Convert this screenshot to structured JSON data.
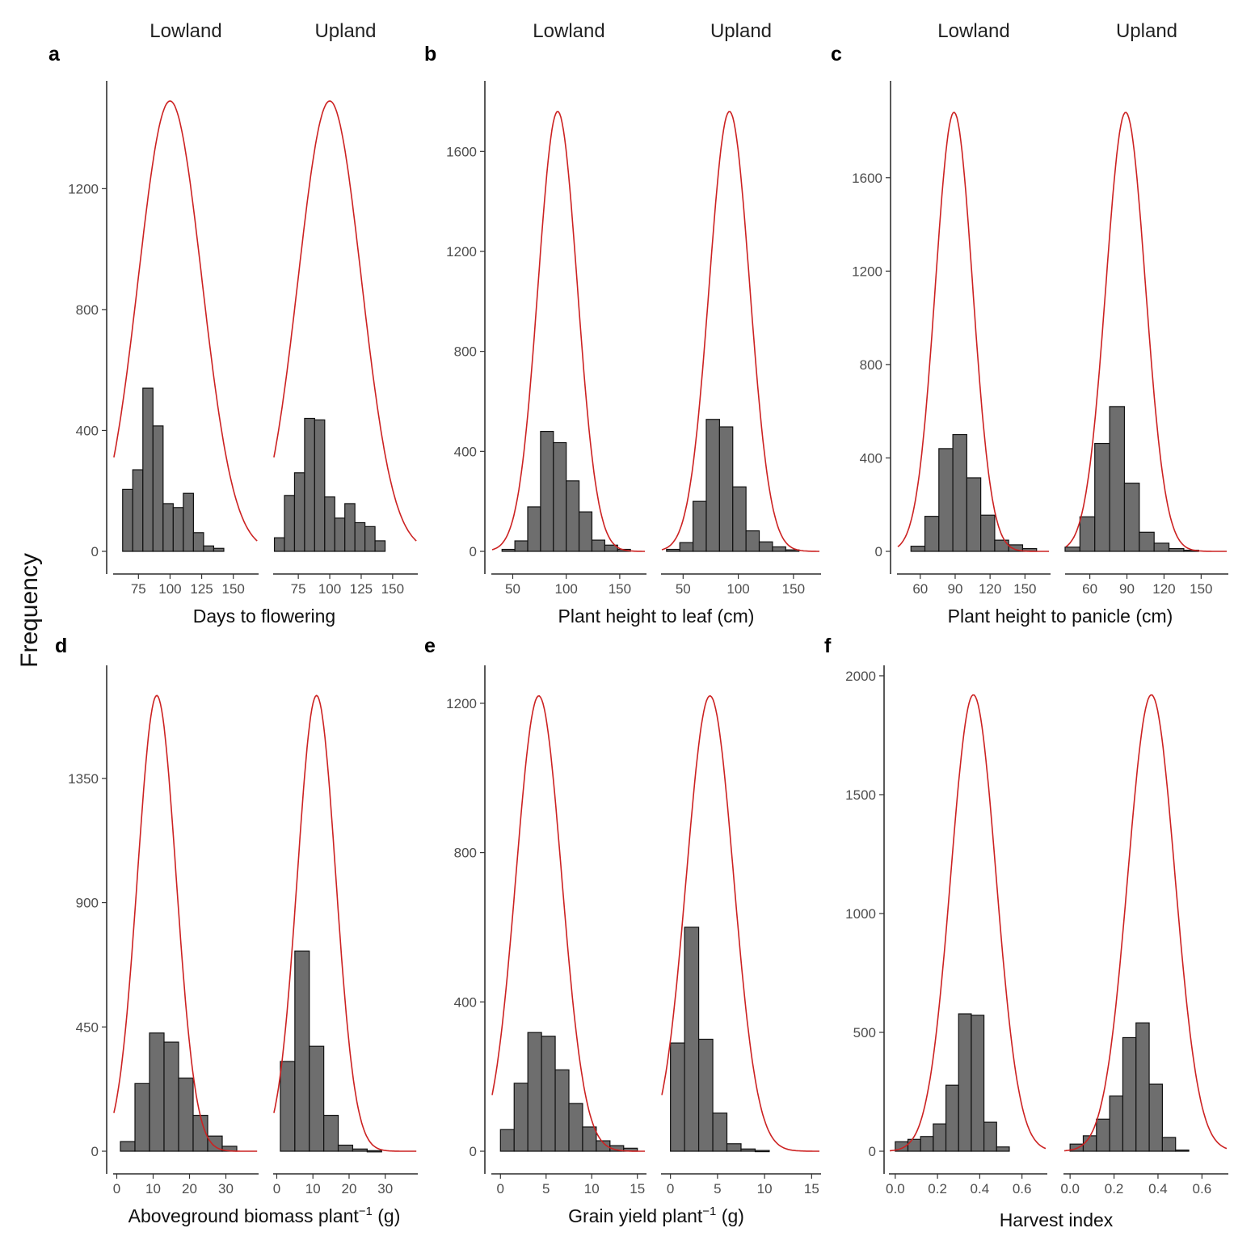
{
  "y_axis_title": "Frequency",
  "chart_data": [
    {
      "panel": "a",
      "type": "bar",
      "xlabel": "Days to flowering",
      "ylabel": "Frequency",
      "facets": [
        "Lowland",
        "Upland"
      ],
      "x_ticks": [
        75,
        100,
        125,
        150
      ],
      "y_ticks": [
        0,
        400,
        800,
        1200
      ],
      "xlim": [
        55,
        170
      ],
      "ylim": [
        0,
        1530
      ],
      "series": [
        {
          "facet": "Lowland",
          "bins": [
            [
              62.5,
              70.5,
              205
            ],
            [
              70.5,
              78.5,
              270
            ],
            [
              78.5,
              86.5,
              540
            ],
            [
              86.5,
              94.5,
              415
            ],
            [
              94.5,
              102.5,
              158
            ],
            [
              102.5,
              110.5,
              145
            ],
            [
              110.5,
              118.5,
              192
            ],
            [
              118.5,
              126.5,
              62
            ],
            [
              126.5,
              134.5,
              18
            ],
            [
              134.5,
              142.5,
              10
            ]
          ],
          "curve": {
            "mean": 100,
            "sd": 25.1,
            "peak": 1490
          }
        },
        {
          "facet": "Upland",
          "bins": [
            [
              56,
              64,
              45
            ],
            [
              64,
              72,
              185
            ],
            [
              72,
              80,
              260
            ],
            [
              80,
              88,
              440
            ],
            [
              88,
              96,
              435
            ],
            [
              96,
              104,
              180
            ],
            [
              104,
              112,
              110
            ],
            [
              112,
              120,
              158
            ],
            [
              120,
              128,
              95
            ],
            [
              128,
              136,
              82
            ],
            [
              136,
              144,
              35
            ]
          ],
          "curve": {
            "mean": 100,
            "sd": 25.1,
            "peak": 1490
          }
        }
      ]
    },
    {
      "panel": "b",
      "type": "bar",
      "xlabel": "Plant height to leaf (cm)",
      "ylabel": "Frequency",
      "facets": [
        "Lowland",
        "Upland"
      ],
      "x_ticks": [
        50,
        100,
        150
      ],
      "y_ticks": [
        0,
        400,
        800,
        1200,
        1600
      ],
      "xlim": [
        30,
        175
      ],
      "ylim": [
        0,
        1850
      ],
      "series": [
        {
          "facet": "Lowland",
          "bins": [
            [
              40,
              52,
              8
            ],
            [
              52,
              64,
              42
            ],
            [
              64,
              76,
              178
            ],
            [
              76,
              88,
              480
            ],
            [
              88,
              100,
              435
            ],
            [
              100,
              112,
              282
            ],
            [
              112,
              124,
              158
            ],
            [
              124,
              136,
              45
            ],
            [
              136,
              148,
              25
            ],
            [
              148,
              160,
              8
            ]
          ],
          "curve": {
            "mean": 92,
            "sd": 18.3,
            "peak": 1760
          }
        },
        {
          "facet": "Upland",
          "bins": [
            [
              35,
              47,
              8
            ],
            [
              47,
              59,
              35
            ],
            [
              59,
              71,
              200
            ],
            [
              71,
              83,
              528
            ],
            [
              83,
              95,
              498
            ],
            [
              95,
              107,
              258
            ],
            [
              107,
              119,
              82
            ],
            [
              119,
              131,
              38
            ],
            [
              131,
              143,
              18
            ],
            [
              143,
              155,
              6
            ]
          ],
          "curve": {
            "mean": 92,
            "sd": 18.3,
            "peak": 1760
          }
        }
      ]
    },
    {
      "panel": "c",
      "type": "bar",
      "xlabel": "Plant height to panicle (cm)",
      "ylabel": "Frequency",
      "facets": [
        "Lowland",
        "Upland"
      ],
      "x_ticks": [
        60,
        90,
        120,
        150
      ],
      "y_ticks": [
        0,
        400,
        800,
        1200,
        1600
      ],
      "xlim": [
        40,
        172
      ],
      "ylim": [
        0,
        1980
      ],
      "series": [
        {
          "facet": "Lowland",
          "bins": [
            [
              52,
              64,
              22
            ],
            [
              64,
              76,
              150
            ],
            [
              76,
              88,
              440
            ],
            [
              88,
              100,
              500
            ],
            [
              100,
              112,
              315
            ],
            [
              112,
              124,
              155
            ],
            [
              124,
              136,
              48
            ],
            [
              136,
              148,
              28
            ],
            [
              148,
              160,
              12
            ]
          ],
          "curve": {
            "mean": 89,
            "sd": 16,
            "peak": 1880
          }
        },
        {
          "facet": "Upland",
          "bins": [
            [
              40,
              52,
              18
            ],
            [
              52,
              64,
              148
            ],
            [
              64,
              76,
              462
            ],
            [
              76,
              88,
              620
            ],
            [
              88,
              100,
              292
            ],
            [
              100,
              112,
              82
            ],
            [
              112,
              124,
              35
            ],
            [
              124,
              136,
              12
            ],
            [
              136,
              148,
              5
            ]
          ],
          "curve": {
            "mean": 89,
            "sd": 16,
            "peak": 1880
          }
        }
      ]
    },
    {
      "panel": "d",
      "type": "bar",
      "xlabel": "Aboveground biomass plant⁻¹ (g)",
      "ylabel": "Frequency",
      "facets": [
        "Lowland",
        "Upland"
      ],
      "x_ticks": [
        0,
        10,
        20,
        30
      ],
      "y_ticks": [
        0,
        450,
        900,
        1350
      ],
      "xlim": [
        -1,
        39
      ],
      "ylim": [
        0,
        1730
      ],
      "series": [
        {
          "facet": "Lowland",
          "bins": [
            [
              1,
              5,
              35
            ],
            [
              5,
              9,
              245
            ],
            [
              9,
              13,
              428
            ],
            [
              13,
              17,
              395
            ],
            [
              17,
              21,
              265
            ],
            [
              21,
              25,
              130
            ],
            [
              25,
              29,
              55
            ],
            [
              29,
              33,
              18
            ]
          ],
          "curve": {
            "mean": 11,
            "sd": 5.3,
            "peak": 1650
          }
        },
        {
          "facet": "Upland",
          "bins": [
            [
              1,
              5,
              325
            ],
            [
              5,
              9,
              725
            ],
            [
              9,
              13,
              380
            ],
            [
              13,
              17,
              130
            ],
            [
              17,
              21,
              22
            ],
            [
              21,
              25,
              8
            ],
            [
              25,
              29,
              2
            ]
          ],
          "curve": {
            "mean": 11,
            "sd": 5.3,
            "peak": 1650
          }
        }
      ]
    },
    {
      "panel": "e",
      "type": "bar",
      "xlabel": "Grain yield plant⁻¹ (g)",
      "ylabel": "Frequency",
      "facets": [
        "Lowland",
        "Upland"
      ],
      "x_ticks": [
        0,
        5,
        10,
        15
      ],
      "y_ticks": [
        0,
        400,
        800,
        1200
      ],
      "xlim": [
        -1,
        16
      ],
      "ylim": [
        0,
        1280
      ],
      "series": [
        {
          "facet": "Lowland",
          "bins": [
            [
              0,
              1.5,
              58
            ],
            [
              1.5,
              3,
              182
            ],
            [
              3,
              4.5,
              318
            ],
            [
              4.5,
              6,
              308
            ],
            [
              6,
              7.5,
              218
            ],
            [
              7.5,
              9,
              128
            ],
            [
              9,
              10.5,
              65
            ],
            [
              10.5,
              12,
              28
            ],
            [
              12,
              13.5,
              15
            ],
            [
              13.5,
              15,
              8
            ]
          ],
          "curve": {
            "mean": 4.2,
            "sd": 2.5,
            "peak": 1220
          }
        },
        {
          "facet": "Upland",
          "bins": [
            [
              0,
              1.5,
              290
            ],
            [
              1.5,
              3,
              600
            ],
            [
              3,
              4.5,
              300
            ],
            [
              4.5,
              6,
              102
            ],
            [
              6,
              7.5,
              20
            ],
            [
              7.5,
              9,
              6
            ],
            [
              9,
              10.5,
              2
            ]
          ],
          "curve": {
            "mean": 4.2,
            "sd": 2.5,
            "peak": 1220
          }
        }
      ]
    },
    {
      "panel": "f",
      "type": "bar",
      "xlabel": "Harvest index",
      "ylabel": "Frequency",
      "facets": [
        "Lowland",
        "Upland"
      ],
      "x_ticks": [
        "0.0",
        "0.2",
        "0.4",
        "0.6"
      ],
      "y_ticks": [
        0,
        500,
        1000,
        1500,
        2000
      ],
      "xlim": [
        -0.03,
        0.72
      ],
      "ylim": [
        0,
        2010
      ],
      "series": [
        {
          "facet": "Lowland",
          "bins": [
            [
              0,
              0.06,
              40
            ],
            [
              0.06,
              0.12,
              50
            ],
            [
              0.12,
              0.18,
              62
            ],
            [
              0.18,
              0.24,
              115
            ],
            [
              0.24,
              0.3,
              278
            ],
            [
              0.3,
              0.36,
              578
            ],
            [
              0.36,
              0.42,
              572
            ],
            [
              0.42,
              0.48,
              122
            ],
            [
              0.48,
              0.54,
              18
            ]
          ],
          "curve": {
            "mean": 0.37,
            "sd": 0.107,
            "peak": 1920
          }
        },
        {
          "facet": "Upland",
          "bins": [
            [
              0,
              0.06,
              30
            ],
            [
              0.06,
              0.12,
              65
            ],
            [
              0.12,
              0.18,
              135
            ],
            [
              0.18,
              0.24,
              232
            ],
            [
              0.24,
              0.3,
              478
            ],
            [
              0.3,
              0.36,
              540
            ],
            [
              0.36,
              0.42,
              282
            ],
            [
              0.42,
              0.48,
              58
            ],
            [
              0.48,
              0.54,
              5
            ]
          ],
          "curve": {
            "mean": 0.37,
            "sd": 0.107,
            "peak": 1920
          }
        }
      ]
    }
  ]
}
